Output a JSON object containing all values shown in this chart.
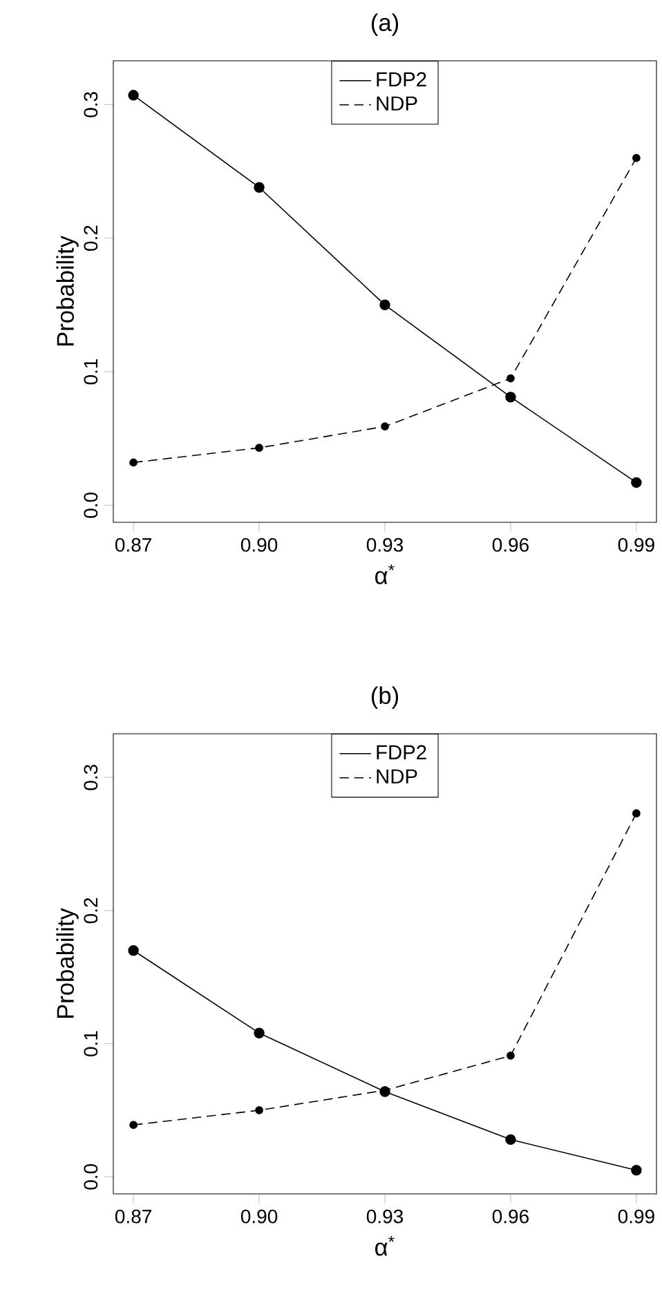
{
  "chart_data": [
    {
      "type": "line",
      "title": "(a)",
      "xlabel": "α$^{*}$",
      "ylabel": "Probability",
      "categories": [
        "0.87",
        "0.90",
        "0.93",
        "0.96",
        "0.99"
      ],
      "ylim": [
        -0.0128,
        0.3328
      ],
      "yticks": [
        {
          "value": 0,
          "label": "0.0"
        },
        {
          "value": 0.1,
          "label": "0.1"
        },
        {
          "value": 0.2,
          "label": "0.2"
        },
        {
          "value": 0.3,
          "label": "0.3"
        }
      ],
      "marker": "circle",
      "legend": "top",
      "series": [
        {
          "name": "FDP2",
          "color": "#000000",
          "line_style": "solid",
          "values": [
            0.307,
            0.238,
            0.15,
            0.081,
            0.017
          ]
        },
        {
          "name": "NDP",
          "color": "#000000",
          "line_style": "dashed",
          "values": [
            0.032,
            0.043,
            0.059,
            0.095,
            0.26
          ]
        }
      ]
    },
    {
      "type": "line",
      "title": "(b)",
      "xlabel": "α$^{*}$",
      "ylabel": "Probability",
      "categories": [
        "0.87",
        "0.90",
        "0.93",
        "0.96",
        "0.99"
      ],
      "ylim": [
        -0.0128,
        0.3328
      ],
      "yticks": [
        {
          "value": 0,
          "label": "0.0"
        },
        {
          "value": 0.1,
          "label": "0.1"
        },
        {
          "value": 0.2,
          "label": "0.2"
        },
        {
          "value": 0.3,
          "label": "0.3"
        }
      ],
      "marker": "circle",
      "legend": "top",
      "series": [
        {
          "name": "FDP2",
          "color": "#000000",
          "line_style": "solid",
          "values": [
            0.17,
            0.108,
            0.064,
            0.028,
            0.005
          ]
        },
        {
          "name": "NDP",
          "color": "#000000",
          "line_style": "dashed",
          "values": [
            0.039,
            0.05,
            0.065,
            0.091,
            0.273
          ]
        }
      ]
    }
  ]
}
